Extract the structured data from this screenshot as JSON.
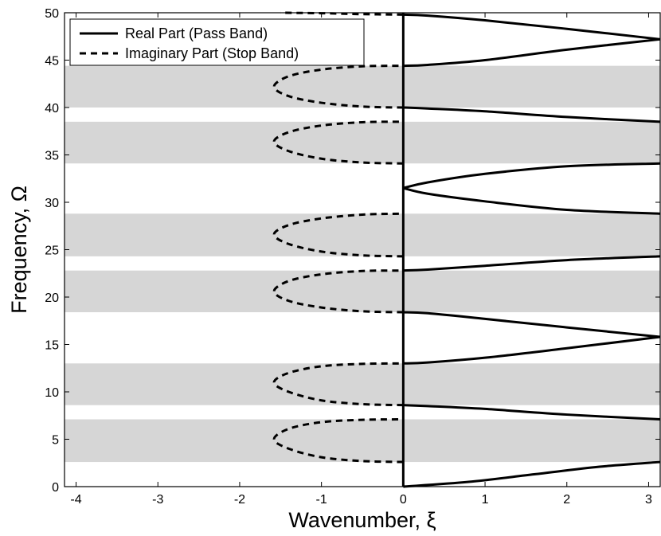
{
  "chart_data": {
    "type": "line",
    "title": "",
    "xlabel": "Wavenumber, ξ",
    "ylabel": "Frequency, Ω",
    "xlim": [
      -4.14159,
      3.14159
    ],
    "ylim": [
      0,
      50
    ],
    "grid": false,
    "legend_position": "top-left",
    "x_ticks": [
      -4,
      -3,
      -2,
      -1,
      0,
      1,
      2,
      3
    ],
    "y_ticks": [
      0,
      5,
      10,
      15,
      20,
      25,
      30,
      35,
      40,
      45,
      50
    ],
    "stop_bands": [
      [
        2.6,
        7.1
      ],
      [
        8.6,
        13.0
      ],
      [
        18.4,
        22.8
      ],
      [
        24.3,
        28.8
      ],
      [
        34.1,
        38.5
      ],
      [
        40.0,
        44.4
      ]
    ],
    "series": [
      {
        "name": "Real Part (Pass Band)",
        "style": "solid"
      },
      {
        "name": "Imaginary Part (Stop Band)",
        "style": "dashed"
      }
    ],
    "pass_band_curves": [
      {
        "x": [
          0,
          0.8,
          1.6,
          2.4,
          3.14159
        ],
        "y": [
          0,
          0.5,
          1.3,
          2.1,
          2.6
        ]
      },
      {
        "x": [
          0,
          0.3,
          1.0,
          2.0,
          3.14159
        ],
        "y": [
          8.6,
          8.5,
          8.2,
          7.6,
          7.1
        ]
      },
      {
        "x": [
          0,
          0.3,
          1.0,
          2.0,
          3.14159
        ],
        "y": [
          13.0,
          13.1,
          13.6,
          14.6,
          15.8
        ]
      },
      {
        "x": [
          0,
          0.3,
          1.0,
          2.0,
          3.14159
        ],
        "y": [
          18.4,
          18.3,
          17.7,
          16.8,
          15.8
        ]
      },
      {
        "x": [
          0,
          0.3,
          1.0,
          2.0,
          3.14159
        ],
        "y": [
          22.8,
          22.9,
          23.3,
          23.9,
          24.3
        ]
      },
      {
        "x": [
          0,
          0.3,
          1.0,
          2.0,
          3.14159
        ],
        "y": [
          31.5,
          30.9,
          30.1,
          29.2,
          28.8
        ]
      },
      {
        "x": [
          0,
          0.3,
          1.0,
          2.0,
          3.14159
        ],
        "y": [
          31.5,
          32.1,
          33.0,
          33.8,
          34.1
        ]
      },
      {
        "x": [
          0,
          0.3,
          1.0,
          2.0,
          3.14159
        ],
        "y": [
          40.0,
          39.9,
          39.6,
          39.0,
          38.5
        ]
      },
      {
        "x": [
          0,
          0.3,
          1.0,
          2.0,
          3.14159
        ],
        "y": [
          44.4,
          44.5,
          45.0,
          46.1,
          47.2
        ]
      },
      {
        "x": [
          0,
          0.3,
          1.0,
          2.0,
          3.14159
        ],
        "y": [
          49.8,
          49.7,
          49.2,
          48.3,
          47.2
        ]
      }
    ],
    "stop_band_curves": [
      {
        "x": [
          0,
          -0.5,
          -1.0,
          -1.4,
          -1.58,
          -1.4,
          -1.0,
          -0.5,
          0
        ],
        "y": [
          2.6,
          2.7,
          3.1,
          4.0,
          5.0,
          6.1,
          6.8,
          7.05,
          7.1
        ]
      },
      {
        "x": [
          0,
          -0.5,
          -1.0,
          -1.4,
          -1.58,
          -1.4,
          -1.0,
          -0.5,
          0
        ],
        "y": [
          8.6,
          8.7,
          9.1,
          10.0,
          11.0,
          12.0,
          12.7,
          12.95,
          13.0
        ]
      },
      {
        "x": [
          0,
          -0.5,
          -1.0,
          -1.4,
          -1.58,
          -1.4,
          -1.0,
          -0.5,
          0
        ],
        "y": [
          18.4,
          18.5,
          18.9,
          19.6,
          20.6,
          21.7,
          22.4,
          22.75,
          22.8
        ]
      },
      {
        "x": [
          0,
          -0.5,
          -1.0,
          -1.4,
          -1.58,
          -1.4,
          -1.0,
          -0.5,
          0
        ],
        "y": [
          24.3,
          24.4,
          24.8,
          25.6,
          26.6,
          27.6,
          28.3,
          28.7,
          28.8
        ]
      },
      {
        "x": [
          0,
          -0.5,
          -1.0,
          -1.4,
          -1.58,
          -1.4,
          -1.0,
          -0.5,
          0
        ],
        "y": [
          34.1,
          34.2,
          34.6,
          35.4,
          36.4,
          37.4,
          38.1,
          38.45,
          38.5
        ]
      },
      {
        "x": [
          0,
          -0.5,
          -1.0,
          -1.4,
          -1.58,
          -1.4,
          -1.0,
          -0.5,
          0
        ],
        "y": [
          40.0,
          40.1,
          40.5,
          41.2,
          42.2,
          43.3,
          44.0,
          44.35,
          44.4
        ]
      },
      {
        "x": [
          0,
          -0.5,
          -1.0,
          -1.5
        ],
        "y": [
          49.8,
          49.85,
          49.95,
          50.0
        ]
      }
    ],
    "colors": {
      "band_fill": "#d6d6d6",
      "line": "#000000",
      "background": "#ffffff"
    }
  }
}
